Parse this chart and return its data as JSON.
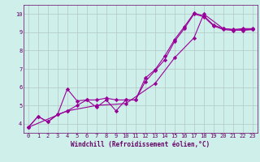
{
  "xlabel": "Windchill (Refroidissement éolien,°C)",
  "ylabel": "",
  "bg_color": "#cff0ea",
  "line_color": "#990099",
  "grid_color": "#b0c8c4",
  "xlim": [
    -0.5,
    23.5
  ],
  "ylim": [
    3.5,
    10.5
  ],
  "xticks": [
    0,
    1,
    2,
    3,
    4,
    5,
    6,
    7,
    8,
    9,
    10,
    11,
    12,
    13,
    14,
    15,
    16,
    17,
    18,
    19,
    20,
    21,
    22,
    23
  ],
  "yticks": [
    4,
    5,
    6,
    7,
    8,
    9,
    10
  ],
  "line1_x": [
    0,
    1,
    2,
    3,
    4,
    5,
    6,
    7,
    8,
    9,
    10,
    11,
    12,
    13,
    14,
    15,
    16,
    17,
    18,
    19,
    20,
    21,
    22,
    23
  ],
  "line1_y": [
    3.8,
    4.4,
    4.1,
    4.5,
    5.9,
    5.25,
    5.3,
    4.9,
    5.3,
    4.7,
    5.3,
    5.3,
    6.5,
    6.95,
    7.7,
    8.6,
    9.3,
    10.05,
    9.9,
    9.4,
    9.2,
    9.15,
    9.2,
    9.2
  ],
  "line2_x": [
    0,
    1,
    2,
    3,
    4,
    5,
    6,
    7,
    8,
    9,
    10,
    11,
    12,
    13,
    14,
    15,
    16,
    17,
    18,
    19,
    20,
    21,
    22,
    23
  ],
  "line2_y": [
    3.8,
    4.4,
    4.1,
    4.5,
    4.7,
    5.0,
    5.3,
    5.3,
    5.4,
    5.3,
    5.3,
    5.3,
    6.3,
    6.9,
    7.5,
    8.5,
    9.2,
    10.0,
    9.85,
    9.35,
    9.15,
    9.1,
    9.15,
    9.15
  ],
  "line3_x": [
    0,
    4,
    7,
    10,
    13,
    15,
    17,
    18,
    20,
    22,
    23
  ],
  "line3_y": [
    3.8,
    4.7,
    5.0,
    5.1,
    6.2,
    7.6,
    8.7,
    10.0,
    9.2,
    9.1,
    9.15
  ],
  "marker": "D",
  "markersize": 2.2,
  "linewidth": 0.8,
  "xlabel_fontsize": 5.5,
  "tick_fontsize": 5.0,
  "axis_color": "#660066"
}
